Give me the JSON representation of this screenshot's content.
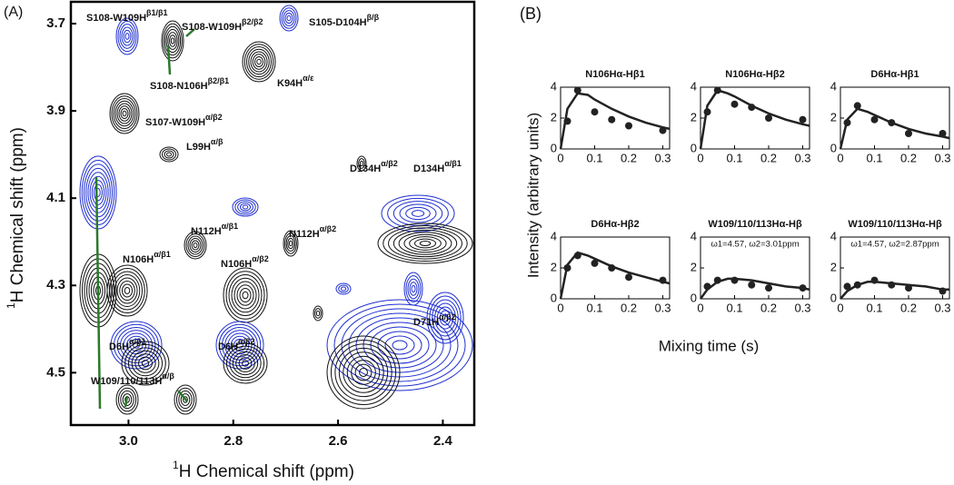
{
  "figure": {
    "panel_labels": [
      "(A)",
      "(B)"
    ],
    "ylabel": "Intensity (arbitrary units)",
    "xlabel": "Mixing time (s)"
  },
  "chart_data": [
    {
      "type": "contour",
      "xlabel": {
        "sup": "1",
        "text": "H Chemical shift (ppm)"
      },
      "ylabel": {
        "sup": "1",
        "text": "H Chemical shift (ppm)"
      },
      "xlim": [
        3.11,
        2.34
      ],
      "ylim": [
        3.65,
        4.62
      ],
      "xticks": [
        {
          "value": 3,
          "label": "3.0"
        },
        2.8,
        2.6,
        2.4
      ],
      "yticks": [
        3.7,
        3.9,
        4.1,
        4.3,
        4.5
      ],
      "annotations": [
        {
          "text": "S108-W109H",
          "sup": "β1/β1"
        },
        {
          "text": "S108-W109H",
          "sup": "β2/β2"
        },
        {
          "text": "S105-D104H",
          "sup": "β/β"
        },
        {
          "text": "K94H",
          "sup": "α/ε"
        },
        {
          "text": "S108-N106H",
          "sup": "β2/β1"
        },
        {
          "text": "S107-W109H",
          "sup": "α/β2"
        },
        {
          "text": "L99H",
          "sup": "α/β"
        },
        {
          "text": "D134H",
          "sup": "α/β2"
        },
        {
          "text": "D134H",
          "sup": "α/β1"
        },
        {
          "text": "N112H",
          "sup": "α/β1"
        },
        {
          "text": "N112H",
          "sup": "α/β2"
        },
        {
          "text": "N106H",
          "sup": "α/β1"
        },
        {
          "text": "N106H",
          "sup": "α/β2"
        },
        {
          "text": "D71H",
          "sup": "α/β2"
        },
        {
          "text": "D6H",
          "sup": "α/β1"
        },
        {
          "text": "D6H",
          "sup": "α/β2"
        },
        {
          "text": "W109/110/113H",
          "sup": "α/β"
        }
      ]
    },
    {
      "type": "scatter",
      "title": "N106Hα-Hβ1",
      "xlim": [
        0,
        0.32
      ],
      "ylim": [
        0,
        4
      ],
      "xticks": [
        0,
        0.1,
        0.2,
        0.3
      ],
      "yticks": [
        0,
        2,
        4
      ],
      "color": "#222",
      "x": [
        0.02,
        0.05,
        0.1,
        0.15,
        0.2,
        0.3
      ],
      "values": [
        1.8,
        3.8,
        2.4,
        1.9,
        1.5,
        1.2
      ],
      "fit_x": [
        0,
        0.02,
        0.05,
        0.08,
        0.1,
        0.15,
        0.2,
        0.25,
        0.3,
        0.32
      ],
      "fit_values": [
        0,
        2.6,
        3.6,
        3.5,
        3.2,
        2.6,
        2.1,
        1.7,
        1.4,
        1.3
      ]
    },
    {
      "type": "scatter",
      "title": "N106Hα-Hβ2",
      "xlim": [
        0,
        0.32
      ],
      "ylim": [
        0,
        4
      ],
      "xticks": [
        0,
        0.1,
        0.2,
        0.3
      ],
      "yticks": [
        0,
        2,
        4
      ],
      "color": "#222",
      "x": [
        0.02,
        0.05,
        0.1,
        0.15,
        0.2,
        0.3
      ],
      "values": [
        2.4,
        3.8,
        2.9,
        2.7,
        2.0,
        1.9
      ],
      "fit_x": [
        0,
        0.02,
        0.05,
        0.08,
        0.1,
        0.15,
        0.2,
        0.25,
        0.3,
        0.32
      ],
      "fit_values": [
        0,
        2.8,
        3.8,
        3.6,
        3.4,
        2.8,
        2.3,
        1.9,
        1.6,
        1.5
      ]
    },
    {
      "type": "scatter",
      "title": "D6Hα-Hβ1",
      "xlim": [
        0,
        0.32
      ],
      "ylim": [
        0,
        4
      ],
      "xticks": [
        0,
        0.1,
        0.2,
        0.3
      ],
      "yticks": [
        0,
        2,
        4
      ],
      "color": "#222",
      "x": [
        0.02,
        0.05,
        0.1,
        0.15,
        0.2,
        0.3
      ],
      "values": [
        1.7,
        2.8,
        1.9,
        1.7,
        1.0,
        1.0
      ],
      "fit_x": [
        0,
        0.02,
        0.05,
        0.08,
        0.1,
        0.15,
        0.2,
        0.25,
        0.3,
        0.32
      ],
      "fit_values": [
        0,
        1.9,
        2.6,
        2.4,
        2.2,
        1.7,
        1.3,
        1.0,
        0.8,
        0.7
      ]
    },
    {
      "type": "scatter",
      "title": "D6Hα-Hβ2",
      "xlim": [
        0,
        0.32
      ],
      "ylim": [
        0,
        4
      ],
      "xticks": [
        0,
        0.1,
        0.2,
        0.3
      ],
      "yticks": [
        0,
        2,
        4
      ],
      "color": "#222",
      "x": [
        0.02,
        0.05,
        0.1,
        0.15,
        0.2,
        0.3
      ],
      "values": [
        2.0,
        2.8,
        2.3,
        2.0,
        1.4,
        1.2
      ],
      "fit_x": [
        0,
        0.02,
        0.05,
        0.08,
        0.1,
        0.15,
        0.2,
        0.25,
        0.3,
        0.32
      ],
      "fit_values": [
        0,
        2.2,
        3.0,
        2.8,
        2.6,
        2.1,
        1.7,
        1.4,
        1.1,
        1.0
      ]
    },
    {
      "type": "scatter",
      "title": "W109/110/113Hα-Hβ",
      "subtitle": "ω1=4.57, ω2=3.01ppm",
      "xlim": [
        0,
        0.32
      ],
      "ylim": [
        0,
        4
      ],
      "xticks": [
        0,
        0.1,
        0.2,
        0.3
      ],
      "yticks": [
        0,
        2,
        4
      ],
      "color": "#222",
      "x": [
        0.02,
        0.05,
        0.1,
        0.15,
        0.2,
        0.3
      ],
      "values": [
        0.8,
        1.2,
        1.2,
        0.9,
        0.7,
        0.7
      ],
      "fit_x": [
        0,
        0.02,
        0.05,
        0.08,
        0.1,
        0.15,
        0.2,
        0.25,
        0.3,
        0.32
      ],
      "fit_values": [
        0,
        0.6,
        1.1,
        1.3,
        1.3,
        1.2,
        1.0,
        0.8,
        0.7,
        0.6
      ]
    },
    {
      "type": "scatter",
      "title": "W109/110/113Hα-Hβ",
      "subtitle": "ω1=4.57, ω2=2.87ppm",
      "xlim": [
        0,
        0.32
      ],
      "ylim": [
        0,
        4
      ],
      "xticks": [
        0,
        0.1,
        0.2,
        0.3
      ],
      "yticks": [
        0,
        2,
        4
      ],
      "color": "#222",
      "x": [
        0.02,
        0.05,
        0.1,
        0.15,
        0.2,
        0.3
      ],
      "values": [
        0.8,
        0.9,
        1.2,
        0.9,
        0.7,
        0.5
      ],
      "fit_x": [
        0,
        0.02,
        0.05,
        0.08,
        0.1,
        0.15,
        0.2,
        0.25,
        0.3,
        0.32
      ],
      "fit_values": [
        0,
        0.5,
        0.9,
        1.1,
        1.1,
        1.0,
        0.9,
        0.8,
        0.6,
        0.6
      ]
    }
  ]
}
